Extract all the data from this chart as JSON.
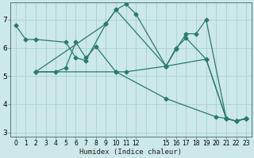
{
  "xlabel": "Humidex (Indice chaleur)",
  "bg_color": "#cce8e8",
  "grid_color": "#aacfcf",
  "line_color": "#2a7a6a",
  "xlim": [
    -0.5,
    23.5
  ],
  "ylim": [
    2.85,
    7.6
  ],
  "yticks": [
    3,
    4,
    5,
    6,
    7
  ],
  "xtick_positions": [
    0,
    1,
    2,
    3,
    4,
    5,
    6,
    7,
    8,
    9,
    10,
    11,
    12,
    15,
    16,
    17,
    18,
    19,
    20,
    21,
    22,
    23
  ],
  "xtick_labels": [
    "0",
    "1",
    "2",
    "3",
    "4",
    "5",
    "6",
    "7",
    "8",
    "9",
    "10",
    "11",
    "12",
    "15",
    "16",
    "17",
    "18",
    "19",
    "20",
    "21",
    "22",
    "23"
  ],
  "lines": [
    {
      "x": [
        0,
        1,
        2,
        5,
        6,
        7,
        9,
        10,
        11,
        12,
        15,
        16,
        17,
        18,
        19,
        21,
        22,
        23
      ],
      "y": [
        6.8,
        6.3,
        6.3,
        6.2,
        5.65,
        5.55,
        6.85,
        7.35,
        7.55,
        7.2,
        5.35,
        5.95,
        6.5,
        6.5,
        7.0,
        3.5,
        3.4,
        3.5
      ]
    },
    {
      "x": [
        2,
        4,
        5,
        6,
        7,
        8,
        10,
        11,
        15,
        16,
        17,
        19,
        21,
        22,
        23
      ],
      "y": [
        5.15,
        5.15,
        5.3,
        6.2,
        5.65,
        6.05,
        5.15,
        5.15,
        5.35,
        6.0,
        6.35,
        5.6,
        3.5,
        3.4,
        3.5
      ]
    },
    {
      "x": [
        2,
        10,
        15,
        20,
        21,
        22,
        23
      ],
      "y": [
        5.15,
        5.15,
        4.2,
        3.55,
        3.5,
        3.4,
        3.5
      ]
    },
    {
      "x": [
        2,
        9,
        10,
        15,
        19,
        21,
        22,
        23
      ],
      "y": [
        5.15,
        6.85,
        7.35,
        5.35,
        5.6,
        3.5,
        3.4,
        3.5
      ]
    }
  ]
}
